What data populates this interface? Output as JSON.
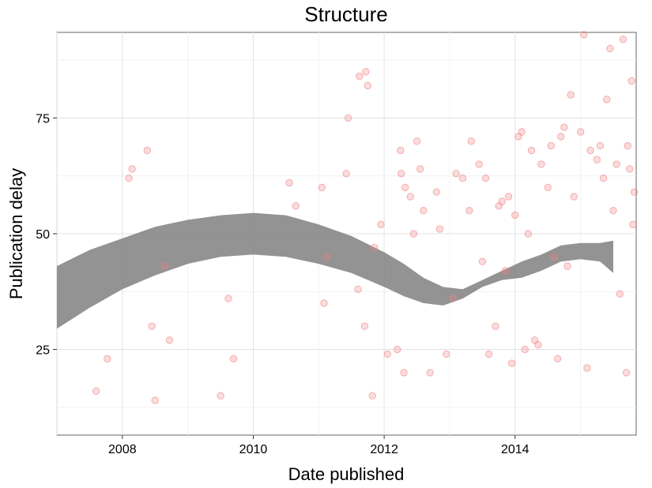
{
  "chart_data": {
    "type": "scatter",
    "title": "Structure",
    "xlabel": "Date published",
    "ylabel": "Publication delay",
    "xlim": [
      2007.0,
      2015.85
    ],
    "ylim": [
      6.5,
      93.5
    ],
    "x_ticks": [
      2008,
      2010,
      2012,
      2014
    ],
    "x_tick_labels": [
      "2008",
      "2010",
      "2012",
      "2014"
    ],
    "y_ticks": [
      25,
      50,
      75
    ],
    "y_tick_labels": [
      "25",
      "50",
      "75"
    ],
    "grid": true,
    "legend": "none",
    "point_color": "#f08080",
    "band_color": "#808080",
    "series": [
      {
        "type": "scatter",
        "points": [
          [
            2007.6,
            16
          ],
          [
            2007.77,
            23
          ],
          [
            2008.1,
            62
          ],
          [
            2008.15,
            64
          ],
          [
            2008.38,
            68
          ],
          [
            2008.45,
            30
          ],
          [
            2008.5,
            14
          ],
          [
            2008.65,
            43
          ],
          [
            2008.72,
            27
          ],
          [
            2009.5,
            15
          ],
          [
            2009.62,
            36
          ],
          [
            2009.7,
            23
          ],
          [
            2010.55,
            61
          ],
          [
            2010.65,
            56
          ],
          [
            2011.05,
            60
          ],
          [
            2011.08,
            35
          ],
          [
            2011.12,
            45
          ],
          [
            2011.42,
            63
          ],
          [
            2011.45,
            75
          ],
          [
            2011.6,
            38
          ],
          [
            2011.62,
            84
          ],
          [
            2011.7,
            30
          ],
          [
            2011.72,
            85
          ],
          [
            2011.75,
            82
          ],
          [
            2011.82,
            15
          ],
          [
            2011.85,
            47
          ],
          [
            2011.95,
            52
          ],
          [
            2012.05,
            24
          ],
          [
            2012.2,
            25
          ],
          [
            2012.25,
            68
          ],
          [
            2012.26,
            63
          ],
          [
            2012.3,
            20
          ],
          [
            2012.32,
            60
          ],
          [
            2012.4,
            58
          ],
          [
            2012.45,
            50
          ],
          [
            2012.5,
            70
          ],
          [
            2012.55,
            64
          ],
          [
            2012.6,
            55
          ],
          [
            2012.7,
            20
          ],
          [
            2012.8,
            59
          ],
          [
            2012.85,
            51
          ],
          [
            2012.95,
            24
          ],
          [
            2013.05,
            36
          ],
          [
            2013.1,
            63
          ],
          [
            2013.2,
            62
          ],
          [
            2013.3,
            55
          ],
          [
            2013.33,
            70
          ],
          [
            2013.45,
            65
          ],
          [
            2013.5,
            44
          ],
          [
            2013.55,
            62
          ],
          [
            2013.6,
            24
          ],
          [
            2013.7,
            30
          ],
          [
            2013.75,
            56
          ],
          [
            2013.8,
            57
          ],
          [
            2013.85,
            42
          ],
          [
            2013.9,
            58
          ],
          [
            2013.95,
            22
          ],
          [
            2014.0,
            54
          ],
          [
            2014.05,
            71
          ],
          [
            2014.1,
            72
          ],
          [
            2014.15,
            25
          ],
          [
            2014.2,
            50
          ],
          [
            2014.25,
            68
          ],
          [
            2014.3,
            27
          ],
          [
            2014.35,
            26
          ],
          [
            2014.4,
            65
          ],
          [
            2014.5,
            60
          ],
          [
            2014.55,
            69
          ],
          [
            2014.6,
            45
          ],
          [
            2014.65,
            23
          ],
          [
            2014.7,
            71
          ],
          [
            2014.75,
            73
          ],
          [
            2014.8,
            43
          ],
          [
            2014.85,
            80
          ],
          [
            2014.9,
            58
          ],
          [
            2015.0,
            72
          ],
          [
            2015.05,
            93
          ],
          [
            2015.1,
            21
          ],
          [
            2015.15,
            68
          ],
          [
            2015.25,
            66
          ],
          [
            2015.3,
            69
          ],
          [
            2015.35,
            62
          ],
          [
            2015.4,
            79
          ],
          [
            2015.45,
            90
          ],
          [
            2015.5,
            55
          ],
          [
            2015.55,
            65
          ],
          [
            2015.6,
            37
          ],
          [
            2015.65,
            92
          ],
          [
            2015.7,
            20
          ],
          [
            2015.72,
            69
          ],
          [
            2015.75,
            64
          ],
          [
            2015.78,
            83
          ],
          [
            2015.8,
            52
          ],
          [
            2015.82,
            59
          ]
        ]
      },
      {
        "type": "band",
        "x": [
          2007.0,
          2007.5,
          2008.0,
          2008.5,
          2009.0,
          2009.5,
          2010.0,
          2010.5,
          2011.0,
          2011.5,
          2012.0,
          2012.3,
          2012.6,
          2012.9,
          2013.2,
          2013.5,
          2013.8,
          2014.1,
          2014.4,
          2014.7,
          2015.0,
          2015.3,
          2015.5
        ],
        "lower": [
          29.5,
          34,
          38,
          41,
          43.5,
          45,
          45.5,
          45,
          43.5,
          41.5,
          38.5,
          36.5,
          35,
          34.5,
          36,
          38.5,
          40,
          40.5,
          42,
          44,
          44.5,
          44,
          41.5
        ],
        "upper": [
          43,
          46.5,
          49,
          51.5,
          53,
          54,
          54.5,
          54,
          52,
          49.5,
          46,
          43.5,
          40.5,
          38.5,
          38,
          40,
          42,
          44,
          45.5,
          47.5,
          48,
          48,
          48.5
        ]
      }
    ]
  }
}
